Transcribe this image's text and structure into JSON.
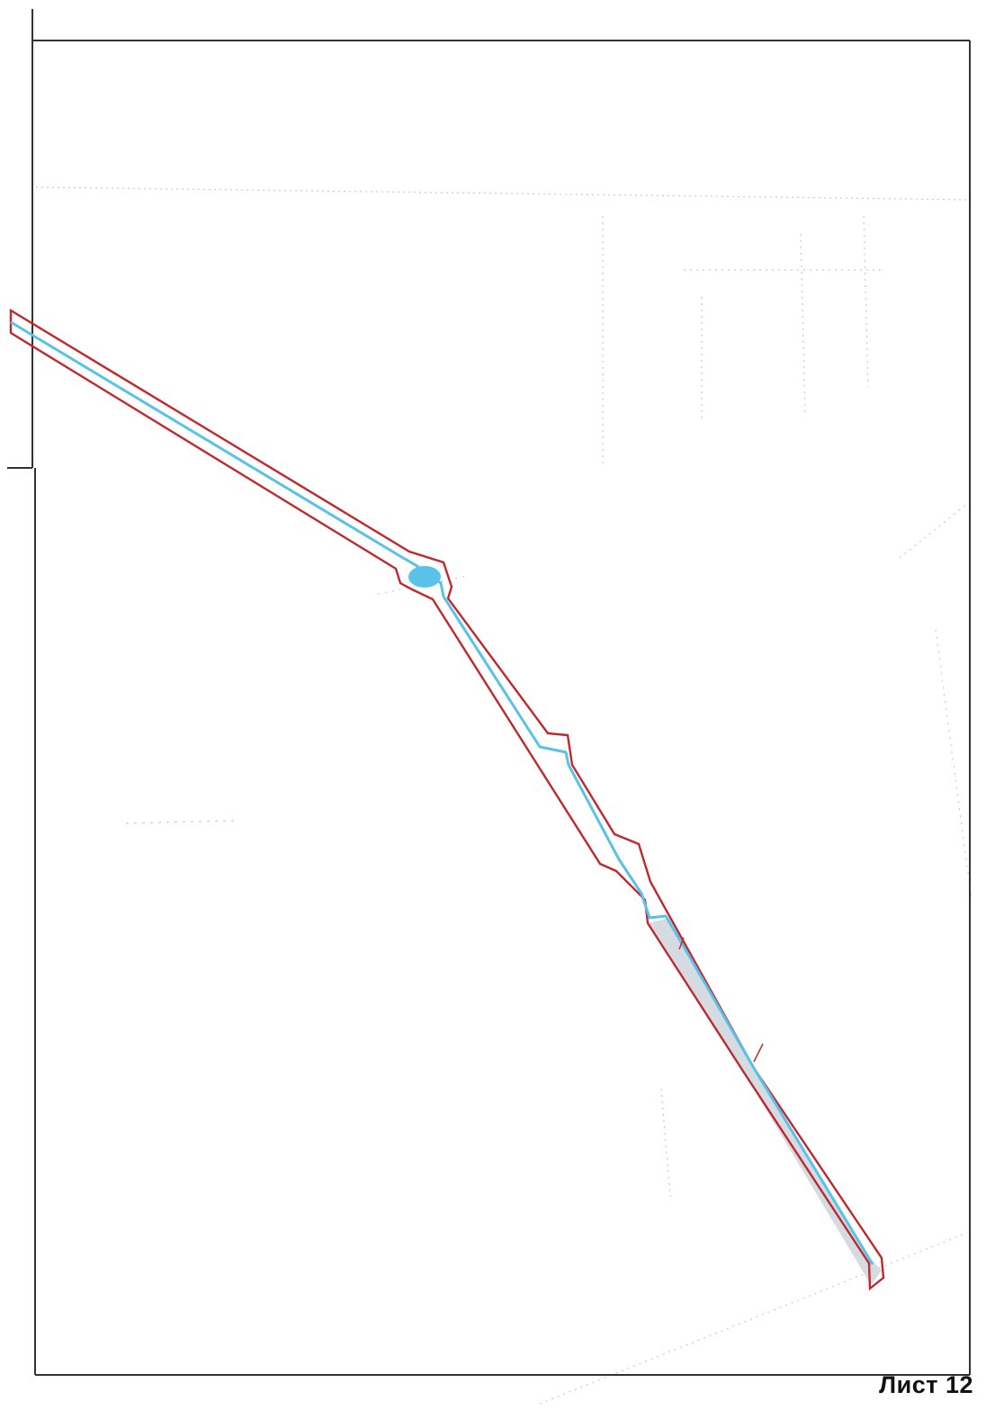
{
  "sheet": {
    "label": "Лист 12"
  },
  "colors": {
    "background": "#ffffff",
    "frame": "#333333",
    "boundary": "#c0282d",
    "watercourse": "#58c2e8",
    "water_fill": "#7ccaea",
    "channel_fill": "#c9d3db",
    "basemap": "#b8b8b8"
  },
  "legend_items": [],
  "map": {
    "layers": [
      {
        "name": "base-topography",
        "visible": true
      },
      {
        "name": "land-allotment-boundary",
        "visible": true
      },
      {
        "name": "watercourse-centerline",
        "visible": true
      },
      {
        "name": "pond",
        "visible": true
      }
    ]
  }
}
